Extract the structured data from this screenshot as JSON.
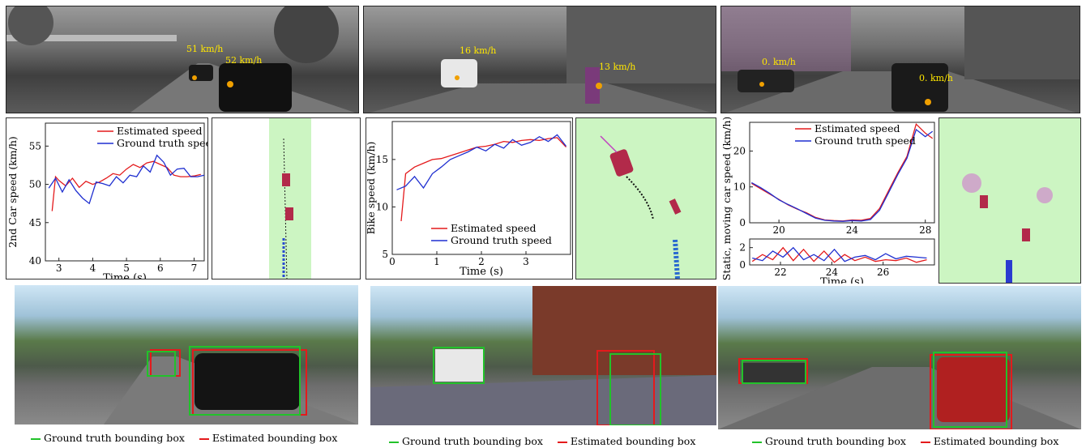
{
  "colors": {
    "estimated": "#e41a1c",
    "ground_truth": "#1f2fd0",
    "lidar_green": "#ccf5c2",
    "box_green": "#22c22a",
    "box_red": "#e41a1c"
  },
  "top_photos": {
    "p1": {
      "labels": [
        "51 km/h",
        "52 km/h"
      ]
    },
    "p2": {
      "labels": [
        "16 km/h",
        "13 km/h"
      ]
    },
    "p3": {
      "labels": [
        "0. km/h",
        "0. km/h"
      ]
    }
  },
  "chart_data": [
    {
      "type": "line",
      "xlabel": "Time (s)",
      "ylabel": "2nd Car speed (km/h)",
      "xlim": [
        2.6,
        7.3
      ],
      "ylim": [
        40,
        58
      ],
      "xticks": [
        3,
        4,
        5,
        6,
        7
      ],
      "yticks": [
        40,
        45,
        50,
        55
      ],
      "legend_position": "top-right",
      "series": [
        {
          "name": "Estimated speed",
          "x": [
            2.8,
            2.9,
            3.0,
            3.2,
            3.4,
            3.6,
            3.8,
            4.0,
            4.2,
            4.4,
            4.6,
            4.8,
            5.0,
            5.2,
            5.4,
            5.6,
            5.8,
            6.0,
            6.2,
            6.4,
            6.6,
            6.8,
            7.0,
            7.2
          ],
          "values": [
            46.5,
            51.0,
            50.5,
            49.8,
            50.8,
            49.6,
            50.4,
            50.0,
            50.3,
            50.8,
            51.4,
            51.2,
            52.0,
            52.6,
            52.2,
            52.8,
            53.0,
            52.6,
            52.2,
            51.2,
            51.0,
            51.0,
            51.1,
            51.3
          ]
        },
        {
          "name": "Ground truth speed",
          "x": [
            2.7,
            2.9,
            3.1,
            3.3,
            3.5,
            3.7,
            3.9,
            4.1,
            4.3,
            4.5,
            4.7,
            4.9,
            5.1,
            5.3,
            5.5,
            5.7,
            5.9,
            6.1,
            6.3,
            6.5,
            6.7,
            6.9,
            7.1,
            7.3
          ],
          "values": [
            49.5,
            50.8,
            49.0,
            50.6,
            49.2,
            48.2,
            47.5,
            50.3,
            50.1,
            49.8,
            51.0,
            50.2,
            51.2,
            51.0,
            52.4,
            51.6,
            53.8,
            52.9,
            51.2,
            52.0,
            52.1,
            51.0,
            51.0,
            51.2
          ]
        }
      ]
    },
    {
      "type": "line",
      "xlabel": "Time (s)",
      "ylabel": "Bike speed (km/h)",
      "xlim": [
        0,
        4.0
      ],
      "ylim": [
        5,
        19
      ],
      "xticks": [
        0,
        1,
        2,
        3
      ],
      "yticks": [
        5,
        10,
        15
      ],
      "legend_position": "bottom-right",
      "series": [
        {
          "name": "Estimated speed",
          "x": [
            0.2,
            0.3,
            0.5,
            0.7,
            0.9,
            1.1,
            1.3,
            1.5,
            1.7,
            1.9,
            2.1,
            2.3,
            2.5,
            2.7,
            2.9,
            3.1,
            3.3,
            3.5,
            3.7,
            3.9
          ],
          "values": [
            8.5,
            13.5,
            14.2,
            14.6,
            15.0,
            15.1,
            15.4,
            15.7,
            16.0,
            16.3,
            16.4,
            16.6,
            16.9,
            16.8,
            17.0,
            17.1,
            17.0,
            17.2,
            17.3,
            16.3
          ]
        },
        {
          "name": "Ground truth speed",
          "x": [
            0.1,
            0.3,
            0.5,
            0.7,
            0.9,
            1.1,
            1.3,
            1.5,
            1.7,
            1.9,
            2.1,
            2.3,
            2.5,
            2.7,
            2.9,
            3.1,
            3.3,
            3.5,
            3.7,
            3.9
          ],
          "values": [
            11.8,
            12.2,
            13.2,
            12.0,
            13.5,
            14.2,
            15.0,
            15.4,
            15.8,
            16.3,
            15.9,
            16.6,
            16.2,
            17.1,
            16.5,
            16.8,
            17.4,
            16.9,
            17.6,
            16.4
          ]
        }
      ]
    },
    {
      "type": "line",
      "xlabel": "",
      "ylabel": "Static, moving car speed (km/h)",
      "xlim": [
        18.4,
        28.5
      ],
      "ylim": [
        0,
        28
      ],
      "xticks": [
        20,
        24,
        28
      ],
      "yticks": [
        0,
        10,
        20
      ],
      "legend_position": "top-left",
      "series": [
        {
          "name": "Estimated speed",
          "x": [
            18.5,
            19.0,
            19.5,
            20.0,
            20.5,
            21.0,
            21.5,
            22.0,
            22.5,
            23.0,
            23.5,
            24.0,
            24.5,
            25.0,
            25.5,
            26.0,
            26.5,
            27.0,
            27.5,
            28.0,
            28.4
          ],
          "values": [
            11.0,
            9.5,
            8.0,
            6.5,
            5.0,
            3.8,
            2.8,
            1.5,
            0.8,
            0.6,
            0.5,
            0.8,
            0.7,
            1.2,
            4.0,
            9.0,
            14.0,
            18.5,
            27.5,
            25.0,
            23.5
          ]
        },
        {
          "name": "Ground truth speed",
          "x": [
            18.5,
            19.0,
            19.5,
            20.0,
            20.5,
            21.0,
            21.5,
            22.0,
            22.5,
            23.0,
            23.5,
            24.0,
            24.5,
            25.0,
            25.5,
            26.0,
            26.5,
            27.0,
            27.5,
            28.0,
            28.4
          ],
          "values": [
            11.2,
            9.8,
            8.2,
            6.4,
            5.1,
            3.9,
            2.6,
            1.3,
            0.7,
            0.5,
            0.4,
            0.6,
            0.5,
            0.9,
            3.5,
            8.5,
            13.5,
            18.0,
            26.0,
            24.0,
            25.5
          ]
        }
      ]
    },
    {
      "type": "line",
      "xlabel": "Time (s)",
      "ylabel": "",
      "xlim": [
        20.8,
        28.0
      ],
      "ylim": [
        0,
        3
      ],
      "xticks": [
        22,
        24,
        26
      ],
      "yticks": [
        0,
        2
      ],
      "series": [
        {
          "x": [
            20.9,
            21.3,
            21.7,
            22.1,
            22.5,
            22.9,
            23.3,
            23.7,
            24.1,
            24.5,
            24.9,
            25.3,
            25.7,
            26.1,
            26.5,
            26.9,
            27.3,
            27.7
          ],
          "values": [
            0.4,
            1.2,
            0.6,
            2.0,
            0.5,
            1.8,
            0.4,
            1.6,
            0.3,
            1.2,
            0.5,
            0.9,
            0.4,
            0.6,
            0.5,
            0.8,
            0.3,
            0.6
          ]
        },
        {
          "x": [
            20.9,
            21.3,
            21.7,
            22.1,
            22.5,
            22.9,
            23.3,
            23.7,
            24.1,
            24.5,
            24.9,
            25.3,
            25.7,
            26.1,
            26.5,
            26.9,
            27.3,
            27.7
          ],
          "values": [
            0.8,
            0.5,
            1.6,
            0.9,
            2.0,
            0.6,
            1.2,
            0.5,
            1.8,
            0.4,
            0.9,
            1.1,
            0.6,
            1.3,
            0.7,
            1.0,
            0.9,
            0.8
          ]
        }
      ]
    }
  ],
  "captions": {
    "ground_truth": "Ground truth bounding box",
    "estimated": "Estimated bounding box"
  }
}
